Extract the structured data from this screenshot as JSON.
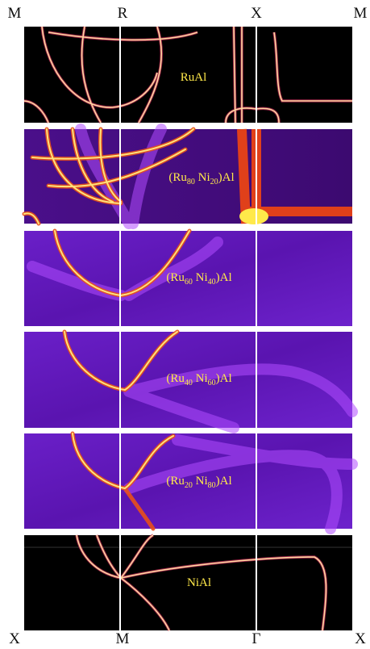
{
  "top_labels": [
    "M",
    "R",
    "X",
    "M"
  ],
  "bottom_labels": [
    "X",
    "M",
    "Γ",
    "X"
  ],
  "panels": [
    {
      "label": "RuAl"
    },
    {
      "label": [
        "(Ru",
        "80",
        " Ni",
        "20",
        ")Al"
      ]
    },
    {
      "label": [
        "(Ru",
        "60",
        " Ni",
        "40",
        ")Al"
      ]
    },
    {
      "label": [
        "(Ru",
        "40",
        " Ni",
        "60",
        ")Al"
      ]
    },
    {
      "label": [
        "(Ru",
        "20",
        " Ni",
        "80",
        ")Al"
      ]
    },
    {
      "label": "NiAl"
    }
  ]
}
